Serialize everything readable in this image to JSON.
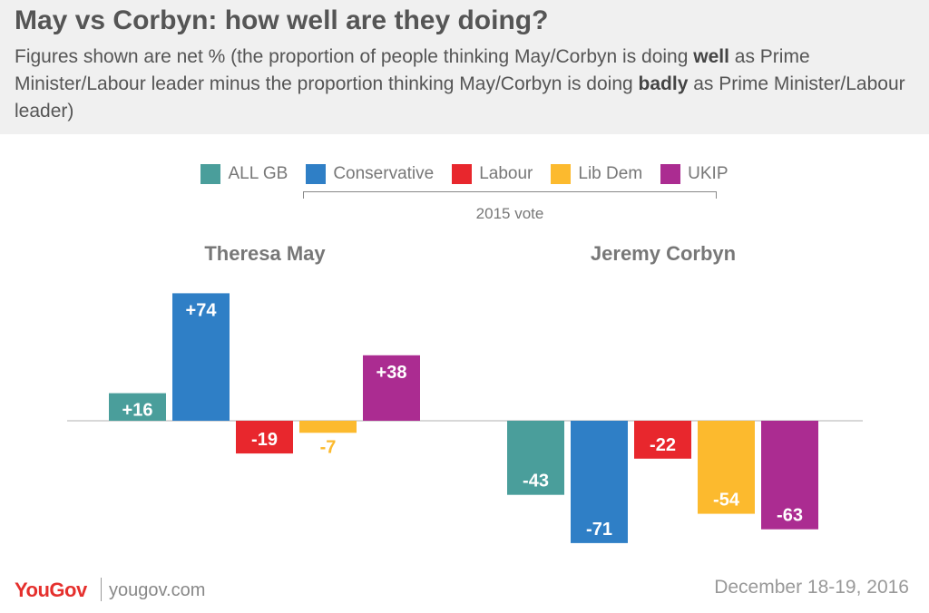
{
  "header": {
    "title": "May vs Corbyn: how well are they doing?",
    "subtitle_pre": "Figures shown are net % (the proportion of people thinking May/Corbyn is doing ",
    "subtitle_bold1": "well",
    "subtitle_mid": " as Prime Minister/Labour leader minus the proportion thinking May/Corbyn is doing ",
    "subtitle_bold2": "badly",
    "subtitle_post": " as Prime Minister/Labour leader)"
  },
  "legend": {
    "items": [
      {
        "label": "ALL GB",
        "color": "#4a9e9b"
      },
      {
        "label": "Conservative",
        "color": "#2f7fc6"
      },
      {
        "label": "Labour",
        "color": "#e8272d"
      },
      {
        "label": "Lib Dem",
        "color": "#fcba2e"
      },
      {
        "label": "UKIP",
        "color": "#ab2c91"
      }
    ],
    "group_label": "2015 vote"
  },
  "chart_data": {
    "type": "bar",
    "categories": [
      "ALL GB",
      "Conservative",
      "Labour",
      "Lib Dem",
      "UKIP"
    ],
    "groups": [
      {
        "name": "Theresa May",
        "values": [
          16,
          74,
          -19,
          -7,
          38
        ],
        "labels": [
          "+16",
          "+74",
          "-19",
          "-7",
          "+38"
        ]
      },
      {
        "name": "Jeremy Corbyn",
        "values": [
          -43,
          -71,
          -22,
          -54,
          -63
        ],
        "labels": [
          "-43",
          "-71",
          "-22",
          "-54",
          "-63"
        ]
      }
    ],
    "colors": [
      "#4a9e9b",
      "#2f7fc6",
      "#e8272d",
      "#fcba2e",
      "#ab2c91"
    ],
    "grid": false
  },
  "footer": {
    "brand": "YouGov",
    "url": "yougov.com",
    "date": "December 18-19, 2016"
  }
}
